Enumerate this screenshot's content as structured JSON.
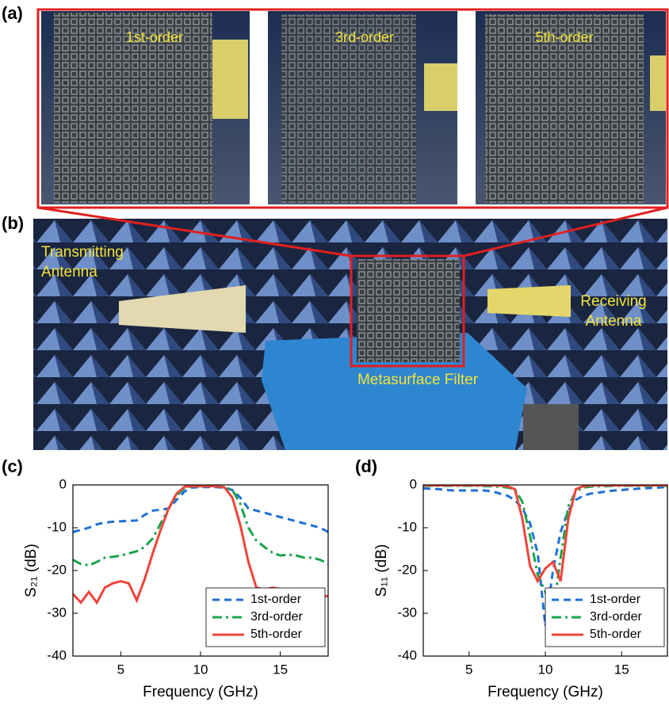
{
  "panels": {
    "a": {
      "label": "(a)",
      "photo_labels": [
        "1st-order",
        "3rd-order",
        "5th-order"
      ]
    },
    "b": {
      "label": "(b)",
      "annotations": {
        "transmitting": "Transmitting Antenna",
        "receiving": "Receiving Antenna",
        "filter": "Metasurface Filter"
      }
    }
  },
  "chart_data": [
    {
      "type": "line",
      "panel_label": "(c)",
      "xlabel": "Frequency (GHz)",
      "ylabel": "S₂₁ (dB)",
      "xlim": [
        2,
        18
      ],
      "xticks": [
        5,
        10,
        15
      ],
      "ylim": [
        -40,
        0
      ],
      "yticks": [
        0,
        -10,
        -20,
        -30,
        -40
      ],
      "legend": "lower right",
      "x": [
        2,
        2.5,
        3,
        3.5,
        4,
        4.5,
        5,
        5.5,
        6,
        6.5,
        7,
        7.5,
        8,
        8.5,
        9,
        9.5,
        10,
        10.5,
        11,
        11.5,
        12,
        12.5,
        13,
        13.5,
        14,
        14.5,
        15,
        15.5,
        16,
        16.5,
        17,
        17.5,
        18
      ],
      "series": [
        {
          "name": "1st-order",
          "color": "#1f6fd6",
          "linestyle": "dashed",
          "values": [
            -11,
            -10.5,
            -10,
            -9.2,
            -8.8,
            -8.6,
            -8.5,
            -8.4,
            -8.3,
            -7,
            -6,
            -5.8,
            -5.5,
            -3.5,
            -1.5,
            -0.6,
            -0.5,
            -0.5,
            -0.5,
            -0.7,
            -1.2,
            -3,
            -5.5,
            -6,
            -6.5,
            -7,
            -7.5,
            -8,
            -8.5,
            -9,
            -9.5,
            -10,
            -11
          ]
        },
        {
          "name": "3rd-order",
          "color": "#1aa34a",
          "linestyle": "dashdot",
          "values": [
            -17.5,
            -18.5,
            -18.8,
            -18,
            -17,
            -16.8,
            -16.5,
            -16,
            -15.5,
            -14.5,
            -12.5,
            -9,
            -5.5,
            -2.5,
            -0.7,
            -0.3,
            -0.3,
            -0.3,
            -0.3,
            -0.5,
            -1.2,
            -4.5,
            -10,
            -13,
            -14.5,
            -15.8,
            -16.5,
            -16.3,
            -16.5,
            -17,
            -17,
            -17.5,
            -18.5
          ]
        },
        {
          "name": "5th-order",
          "color": "#f0443a",
          "linestyle": "solid",
          "values": [
            -25.5,
            -27.5,
            -25,
            -27.5,
            -24,
            -23,
            -22.5,
            -23,
            -27,
            -22,
            -16,
            -10.5,
            -5.5,
            -2,
            -0.4,
            -0.3,
            -0.3,
            -0.3,
            -0.3,
            -0.6,
            -3,
            -9.5,
            -18,
            -24,
            -24.5,
            -24,
            -24.3,
            -27.5,
            -28,
            -26,
            -25.5,
            -26,
            -26
          ]
        }
      ]
    },
    {
      "type": "line",
      "panel_label": "(d)",
      "xlabel": "Frequency (GHz)",
      "ylabel": "S₁₁ (dB)",
      "xlim": [
        2,
        18
      ],
      "xticks": [
        5,
        10,
        15
      ],
      "ylim": [
        -40,
        0
      ],
      "yticks": [
        0,
        -10,
        -20,
        -30,
        -40
      ],
      "legend": "lower right",
      "x": [
        2,
        2.5,
        3,
        3.5,
        4,
        4.5,
        5,
        5.5,
        6,
        6.5,
        7,
        7.5,
        8,
        8.5,
        9,
        9.5,
        10,
        10.5,
        11,
        11.5,
        12,
        12.5,
        13,
        13.5,
        14,
        14.5,
        15,
        15.5,
        16,
        16.5,
        17,
        17.5,
        18
      ],
      "series": [
        {
          "name": "1st-order",
          "color": "#1f6fd6",
          "linestyle": "dashed",
          "values": [
            -0.8,
            -0.9,
            -1,
            -1.2,
            -1.3,
            -1.3,
            -1.3,
            -1.3,
            -1.3,
            -1.5,
            -2,
            -2.5,
            -3.5,
            -5.5,
            -9,
            -16,
            -33,
            -20,
            -11,
            -6,
            -3.5,
            -2.5,
            -2,
            -1.8,
            -1.5,
            -1.3,
            -1.2,
            -1,
            -0.9,
            -0.8,
            -0.7,
            -0.6,
            -0.5
          ]
        },
        {
          "name": "3rd-order",
          "color": "#1aa34a",
          "linestyle": "dashdot",
          "values": [
            -0.2,
            -0.2,
            -0.2,
            -0.2,
            -0.2,
            -0.2,
            -0.2,
            -0.2,
            -0.3,
            -0.3,
            -0.4,
            -0.6,
            -1,
            -4,
            -12,
            -21,
            -25,
            -30,
            -17,
            -5,
            -1.5,
            -0.6,
            -0.4,
            -0.3,
            -0.3,
            -0.2,
            -0.2,
            -0.2,
            -0.2,
            -0.2,
            -0.2,
            -0.2,
            -0.2
          ]
        },
        {
          "name": "5th-order",
          "color": "#f0443a",
          "linestyle": "solid",
          "values": [
            -0.1,
            -0.1,
            -0.1,
            -0.1,
            -0.1,
            -0.1,
            -0.1,
            -0.1,
            -0.1,
            -0.1,
            -0.1,
            -0.3,
            -1,
            -8,
            -19,
            -22.5,
            -19.5,
            -18,
            -22.5,
            -8,
            -1,
            -0.3,
            -0.1,
            -0.1,
            -0.1,
            -0.1,
            -0.1,
            -0.1,
            -0.1,
            -0.1,
            -0.1,
            -0.1,
            -0.1
          ]
        }
      ]
    }
  ]
}
